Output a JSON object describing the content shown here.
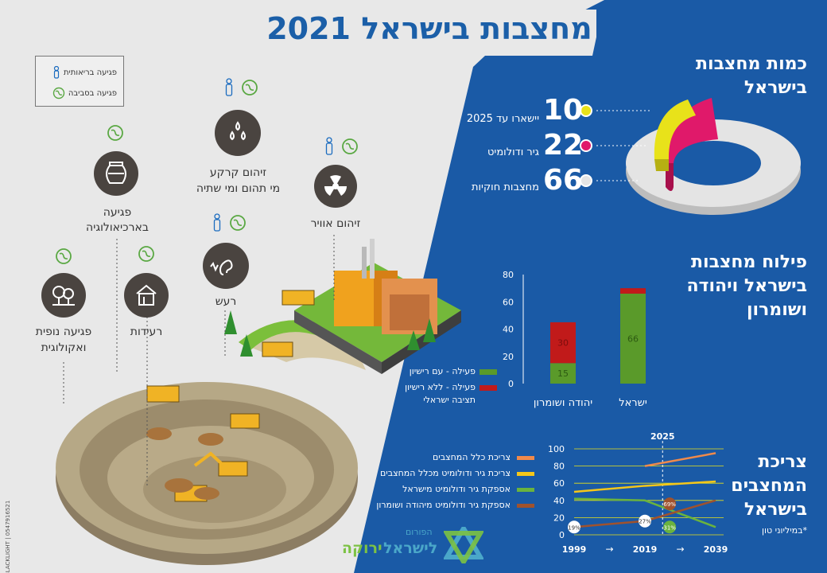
{
  "title": "מחצבות בישראל 2021",
  "legend_box": {
    "health": "פגיעה בריאותית",
    "environment": "פגיעה בסביבה"
  },
  "impacts": [
    {
      "id": "air",
      "label_1": "זיהום אוויר",
      "label_2": ""
    },
    {
      "id": "groundwater",
      "label_1": "זיהום קרקע",
      "label_2": "מי תהום ומי שתיה"
    },
    {
      "id": "archaeology",
      "label_1": "פגיעה",
      "label_2": "בארכיאולוגיה"
    },
    {
      "id": "noise",
      "label_1": "רעש",
      "label_2": ""
    },
    {
      "id": "vibrations",
      "label_1": "רעידות",
      "label_2": ""
    },
    {
      "id": "landscape",
      "label_1": "פגיעה נופית",
      "label_2": "ואקולוגית"
    }
  ],
  "quarry_count": {
    "title_1": "כמות מחצבות",
    "title_2": "בישראל",
    "items": [
      {
        "value": "10",
        "label": "יישארו עד 2025",
        "color": "#e8e21a"
      },
      {
        "value": "22",
        "label": "גיר ודולומיט",
        "color": "#e0196a"
      },
      {
        "value": "66",
        "label": "מחצבות חוקיות",
        "color": "#e5e5e5"
      }
    ]
  },
  "distribution": {
    "title_1": "פילוח מחצבות",
    "title_2": "בישראל ויהודה",
    "title_3": "ושומרון",
    "legend": [
      {
        "label": "פעילה - עם רישיון",
        "color": "#5a9a2a"
      },
      {
        "label": "פעילה - ללא רישיון",
        "label_2": "תציבה ישראלי",
        "color": "#c11a1a"
      }
    ]
  },
  "consumption": {
    "title_1": "צריכת",
    "title_2": "המחצבים",
    "title_3": "בישראל",
    "note": "*במיליוני טון",
    "legend": [
      {
        "label": "צריכת כלל המחצבים",
        "color": "#f08a4b"
      },
      {
        "label": "צריכת גיר ודולומיט מכלל המחצבים",
        "color": "#f5c71a"
      },
      {
        "label": "אספקת גיר ודולומיט מישראל",
        "color": "#6ab33e"
      },
      {
        "label": "אספקת גיר ודולומיט מיהודה ושומרון",
        "color": "#a0522d"
      }
    ],
    "year_top": "2025",
    "x_labels": [
      "1999",
      "2019",
      "2039"
    ],
    "badges": [
      "19%",
      "27%",
      "31%",
      "69%"
    ]
  },
  "logo": {
    "line1": "הפורום",
    "line2": "לישראל",
    "line3": "ירוקה"
  },
  "side_credit": "BLACKLIGHT | 0547916521",
  "chart_data": [
    {
      "type": "bar",
      "categories": [
        "יהודה ושומרון",
        "ישראל"
      ],
      "series": [
        {
          "name": "פעילה - עם רישיון",
          "values": [
            15,
            66
          ]
        },
        {
          "name": "פעילה - ללא רישיון",
          "values": [
            30,
            4
          ]
        }
      ],
      "ylim": [
        0,
        80
      ],
      "yticks": [
        "0",
        "20",
        "40",
        "60",
        "80"
      ],
      "data_labels": [
        "15",
        "30",
        "66"
      ]
    },
    {
      "type": "line",
      "x": [
        1999,
        2019,
        2039
      ],
      "ylim": [
        0,
        100
      ],
      "yticks": [
        "0",
        "20",
        "40",
        "60",
        "80",
        "100"
      ],
      "series": [
        {
          "name": "צריכת כלל המחצבים",
          "x": [
            2019,
            2039
          ],
          "values": [
            80,
            95
          ]
        },
        {
          "name": "צריכת גיר ודולומיט מכלל המחצבים",
          "x": [
            1999,
            2019,
            2039
          ],
          "values": [
            50,
            57,
            62
          ]
        },
        {
          "name": "אספקת גיר ודולומיט מישראל",
          "x": [
            1999,
            2019,
            2039
          ],
          "values": [
            42,
            40,
            9
          ]
        },
        {
          "name": "אספקת גיר ודולומיט מיהודה ושומרון",
          "x": [
            1999,
            2019,
            2039
          ],
          "values": [
            9,
            16,
            40
          ]
        }
      ]
    }
  ]
}
